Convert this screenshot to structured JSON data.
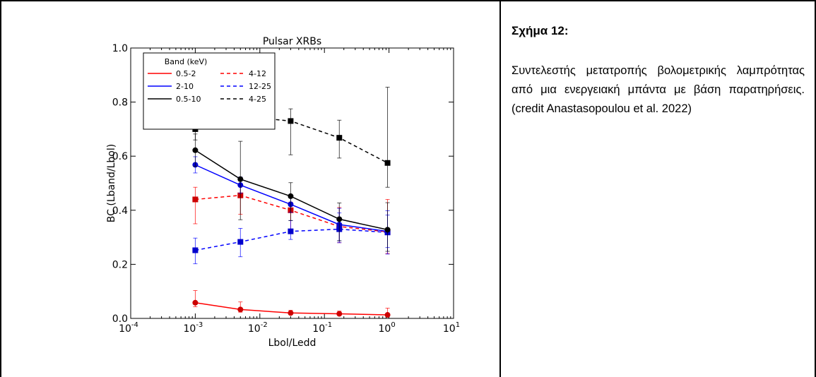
{
  "caption": {
    "title": "Σχήμα 12:",
    "body": "Συντελεστής μετατροπής βολομετρικής λαμπρότητας από μια ενεργειακή μπάντα με βάση παρατηρήσεις. (credit Anastasopoulou et al. 2022)"
  },
  "chart_data": {
    "type": "line",
    "title": "Pulsar XRBs",
    "xlabel": "Lbol/Ledd",
    "ylabel": "BC (Lband/Lbol)",
    "xscale": "log",
    "xlim": [
      0.0001,
      10
    ],
    "ylim": [
      0.0,
      1.0
    ],
    "x_ticks": [
      {
        "value": 0.0001,
        "base": "10",
        "exp": "-4"
      },
      {
        "value": 0.001,
        "base": "10",
        "exp": "-3"
      },
      {
        "value": 0.01,
        "base": "10",
        "exp": "-2"
      },
      {
        "value": 0.1,
        "base": "10",
        "exp": "-1"
      },
      {
        "value": 1,
        "base": "10",
        "exp": "0"
      },
      {
        "value": 10,
        "base": "10",
        "exp": "1"
      }
    ],
    "y_ticks": [
      {
        "value": 0.0,
        "label": "0.0"
      },
      {
        "value": 0.2,
        "label": "0.2"
      },
      {
        "value": 0.4,
        "label": "0.4"
      },
      {
        "value": 0.6,
        "label": "0.6"
      },
      {
        "value": 0.8,
        "label": "0.8"
      },
      {
        "value": 1.0,
        "label": "1.0"
      }
    ],
    "legend": {
      "title": "Band (keV)",
      "position": "top-left",
      "columns": 2
    },
    "x": [
      0.001,
      0.005,
      0.03,
      0.17,
      0.95
    ],
    "series": [
      {
        "name": "0.5-2",
        "color": "#ff0000",
        "marker_color": "#cc0000",
        "dash": false,
        "marker": "circle",
        "values": [
          0.058,
          0.033,
          0.02,
          0.017,
          0.013
        ],
        "err_low": [
          0.015,
          0.01,
          0.005,
          0.005,
          0.005
        ],
        "err_high": [
          0.045,
          0.028,
          0.01,
          0.01,
          0.025
        ]
      },
      {
        "name": "4-12",
        "color": "#ff0000",
        "marker_color": "#cc0000",
        "dash": true,
        "marker": "square",
        "values": [
          0.44,
          0.455,
          0.4,
          0.34,
          0.32
        ],
        "err_low": [
          0.09,
          0.07,
          0.07,
          0.06,
          0.08
        ],
        "err_high": [
          0.045,
          0.04,
          0.03,
          0.07,
          0.12
        ]
      },
      {
        "name": "2-10",
        "color": "#0000ff",
        "marker_color": "#0000cc",
        "dash": false,
        "marker": "circle",
        "values": [
          0.568,
          0.493,
          0.422,
          0.347,
          0.322
        ],
        "err_low": [
          0.03,
          0.03,
          0.03,
          0.06,
          0.06
        ],
        "err_high": [
          0.03,
          0.03,
          0.03,
          0.06,
          0.06
        ]
      },
      {
        "name": "12-25",
        "color": "#0000ff",
        "marker_color": "#0000cc",
        "dash": true,
        "marker": "square",
        "values": [
          0.252,
          0.283,
          0.322,
          0.33,
          0.318
        ],
        "err_low": [
          0.05,
          0.055,
          0.03,
          0.05,
          0.08
        ],
        "err_high": [
          0.045,
          0.05,
          0.04,
          0.06,
          0.08
        ]
      },
      {
        "name": "0.5-10",
        "color": "#000000",
        "marker_color": "#000000",
        "dash": false,
        "marker": "circle",
        "values": [
          0.622,
          0.515,
          0.452,
          0.367,
          0.328
        ],
        "err_low": [
          0.06,
          0.15,
          0.09,
          0.08,
          0.08
        ],
        "err_high": [
          0.06,
          0.14,
          0.05,
          0.06,
          0.1
        ]
      },
      {
        "name": "4-25",
        "color": "#000000",
        "marker_color": "#000000",
        "dash": true,
        "marker": "square",
        "values": [
          0.7,
          0.748,
          0.73,
          0.668,
          0.575
        ],
        "err_low": [
          0.04,
          0.04,
          0.125,
          0.075,
          0.09
        ],
        "err_high": [
          0.04,
          0.035,
          0.045,
          0.065,
          0.28
        ]
      }
    ]
  }
}
